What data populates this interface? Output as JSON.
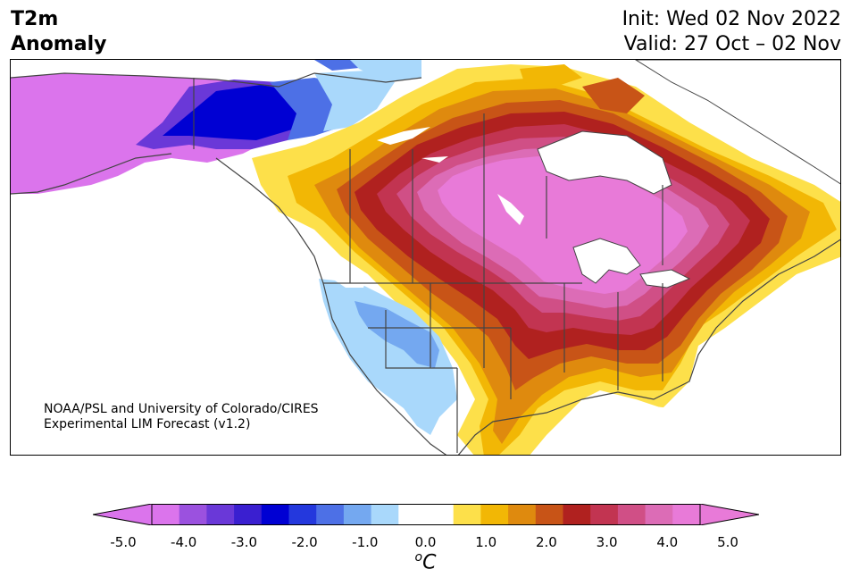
{
  "header": {
    "title_line1": "T2m",
    "title_line2": "Anomaly",
    "init": "Init: Wed 02 Nov 2022",
    "valid": "Valid: 27 Oct – 02 Nov"
  },
  "map": {
    "credit_line1": "NOAA/PSL and University of Colorado/CIRES",
    "credit_line2": "Experimental LIM Forecast (v1.2)",
    "region": "North America",
    "field": "2m temperature anomaly forecast"
  },
  "colorbar": {
    "unit_base": "C",
    "unit_sup": "o",
    "min": -5.0,
    "max": 5.0,
    "step": 0.5,
    "extend": "both",
    "ticks": [
      "-5.0",
      "-4.0",
      "-3.0",
      "-2.0",
      "-1.0",
      "0.0",
      "1.0",
      "2.0",
      "3.0",
      "4.0",
      "5.0"
    ],
    "colors": [
      "#db74ec",
      "#9b51df",
      "#6a38d8",
      "#3a1fd0",
      "#0000d3",
      "#2438dd",
      "#4d70e6",
      "#74a8f0",
      "#a9d8fb",
      "#ffffff",
      "#ffffff",
      "#fde04a",
      "#f2b705",
      "#df8a0e",
      "#c85417",
      "#b0211f",
      "#c23451",
      "#d04f86",
      "#dc6cb6",
      "#e87ad8"
    ],
    "under_color": "#db74ec",
    "over_color": "#e87ad8"
  }
}
